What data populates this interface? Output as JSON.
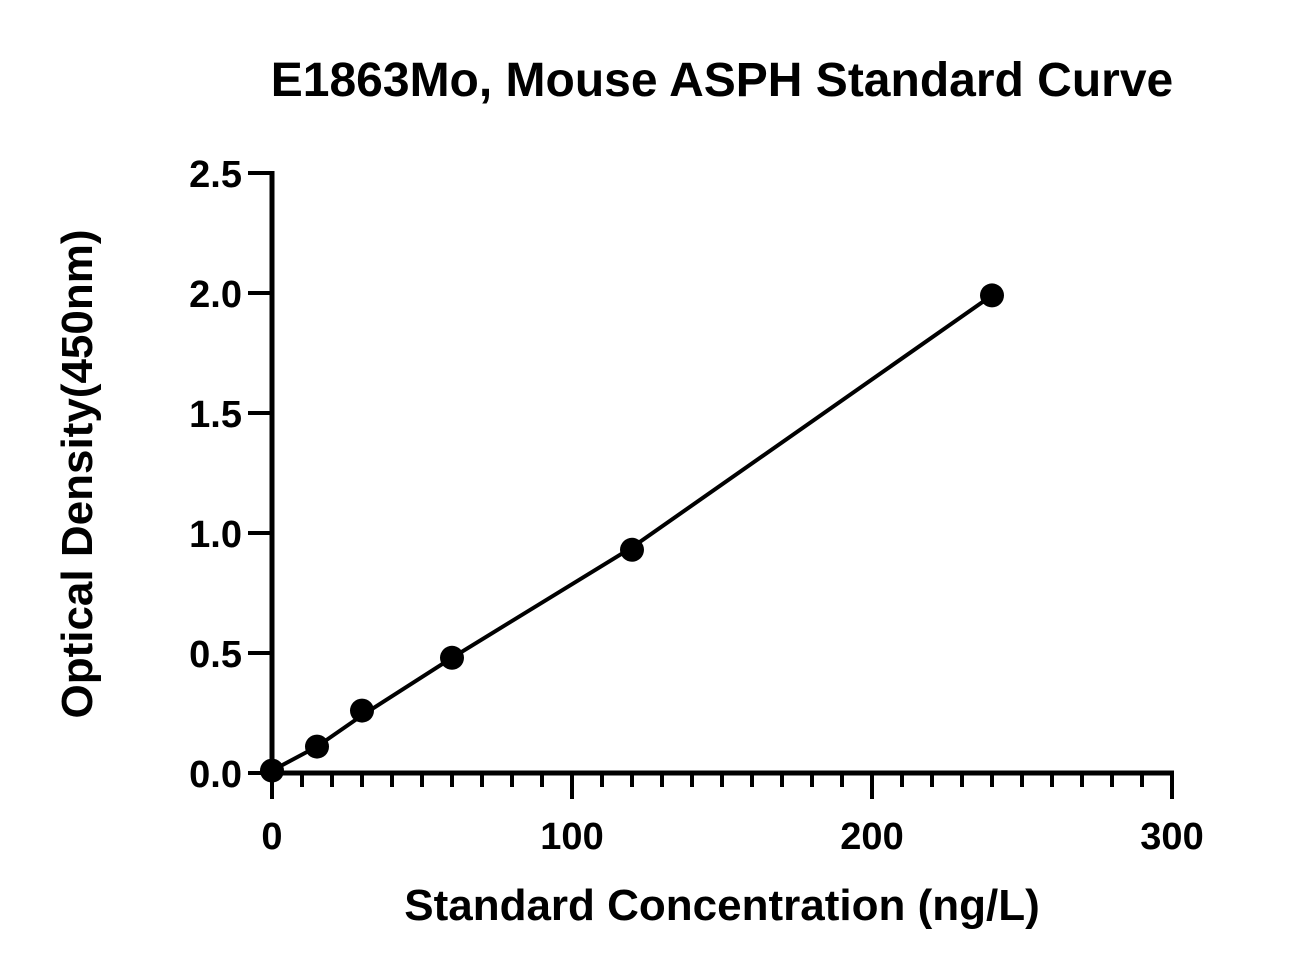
{
  "chart_data": {
    "type": "scatter",
    "title": "E1863Mo, Mouse ASPH Standard Curve",
    "xlabel": "Standard Concentration (ng/L)",
    "ylabel": "Optical Density(450nm)",
    "xlim": [
      0,
      300
    ],
    "ylim": [
      0,
      2.5
    ],
    "x_ticks": [
      "0",
      "100",
      "200",
      "300"
    ],
    "y_ticks": [
      "0.0",
      "0.5",
      "1.0",
      "1.5",
      "2.0",
      "2.5"
    ],
    "x_minor_tick_step": 10,
    "grid": false,
    "series": [
      {
        "x": [
          0,
          15,
          30,
          60,
          120,
          240
        ],
        "y": [
          0.01,
          0.11,
          0.26,
          0.48,
          0.93,
          1.99
        ]
      }
    ],
    "fit_line": {
      "x": [
        0,
        15,
        30,
        60,
        120,
        240
      ],
      "y": [
        0.01,
        0.11,
        0.24,
        0.48,
        0.94,
        1.99
      ]
    },
    "colors": {
      "marks": "#000000",
      "background": "#ffffff"
    }
  }
}
